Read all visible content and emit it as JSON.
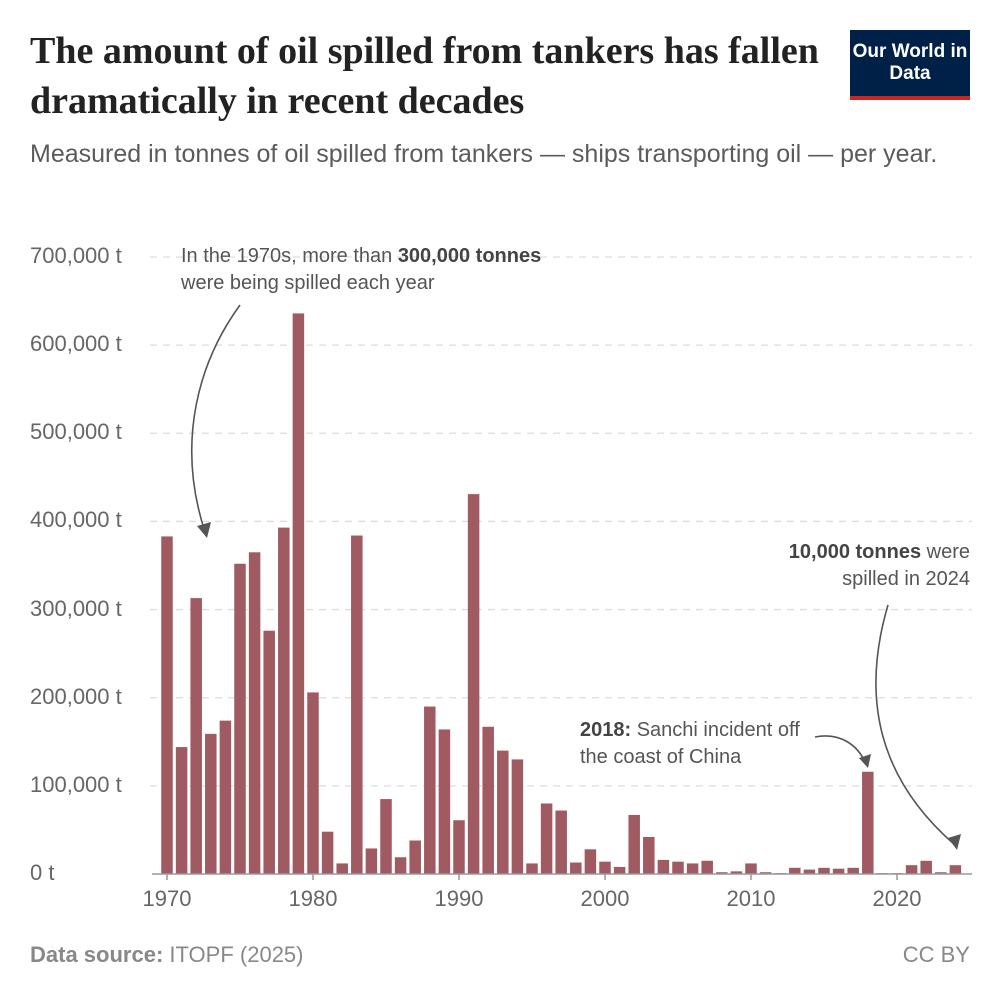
{
  "header": {
    "title": "The amount of oil spilled from tankers has fallen dramatically in recent decades",
    "subtitle": "Measured in tonnes of oil spilled from tankers — ships transporting oil — per year.",
    "logo": "Our World in Data"
  },
  "footer": {
    "source_label": "Data source:",
    "source": "ITOPF (2025)",
    "license": "CC BY"
  },
  "colors": {
    "bar": "#a05a62",
    "logo_bg": "#002147",
    "logo_accent": "#ce261e"
  },
  "annotations": {
    "a1970s_pre": "In the 1970s, more than ",
    "a1970s_bold": "300,000 tonnes",
    "a1970s_post": " were being spilled each year",
    "a2018_bold": "2018:",
    "a2018_post": " Sanchi incident off the coast of China",
    "a2024_bold": "10,000 tonnes",
    "a2024_post": " were spilled in 2024"
  },
  "chart_data": {
    "type": "bar",
    "title": "The amount of oil spilled from tankers has fallen dramatically in recent decades",
    "unit": "t",
    "ylim": [
      0,
      700000
    ],
    "yticks": [
      "0 t",
      "100,000 t",
      "200,000 t",
      "300,000 t",
      "400,000 t",
      "500,000 t",
      "600,000 t",
      "700,000 t"
    ],
    "xticks": [
      "1970",
      "1980",
      "1990",
      "2000",
      "2010",
      "2020"
    ],
    "grid": true,
    "x": [
      1970,
      1971,
      1972,
      1973,
      1974,
      1975,
      1976,
      1977,
      1978,
      1979,
      1980,
      1981,
      1982,
      1983,
      1984,
      1985,
      1986,
      1987,
      1988,
      1989,
      1990,
      1991,
      1992,
      1993,
      1994,
      1995,
      1996,
      1997,
      1998,
      1999,
      2000,
      2001,
      2002,
      2003,
      2004,
      2005,
      2006,
      2007,
      2008,
      2009,
      2010,
      2011,
      2012,
      2013,
      2014,
      2015,
      2016,
      2017,
      2018,
      2019,
      2020,
      2021,
      2022,
      2023,
      2024
    ],
    "values": [
      383000,
      144000,
      313000,
      159000,
      174000,
      352000,
      365000,
      276000,
      393000,
      636000,
      206000,
      48000,
      12000,
      384000,
      29000,
      85000,
      19000,
      38000,
      190000,
      164000,
      61000,
      431000,
      167000,
      140000,
      130000,
      12000,
      80000,
      72000,
      13000,
      28000,
      14000,
      8000,
      67000,
      42000,
      16000,
      14000,
      12000,
      15000,
      2000,
      3000,
      12000,
      2000,
      1000,
      7000,
      5000,
      7000,
      6000,
      7000,
      116000,
      1000,
      1000,
      10000,
      15000,
      2000,
      10000
    ]
  }
}
